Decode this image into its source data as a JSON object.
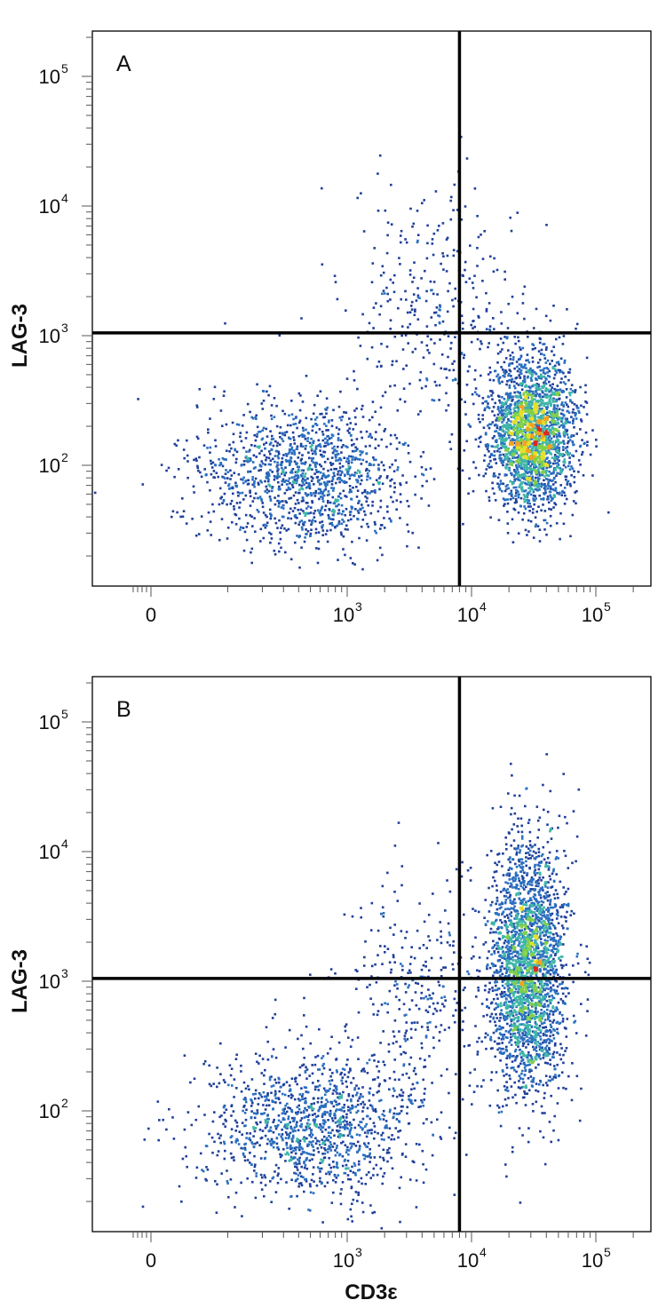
{
  "chart_data": [
    {
      "type": "scatter",
      "panel_label": "A",
      "xlabel": "",
      "ylabel": "LAG-3",
      "x_scale": "biexponential",
      "y_scale": "log",
      "x_tick_labels": [
        {
          "value": 0,
          "base": "0",
          "exp": ""
        },
        {
          "value": 1000,
          "base": "10",
          "exp": "3"
        },
        {
          "value": 10000,
          "base": "10",
          "exp": "4"
        },
        {
          "value": 100000,
          "base": "10",
          "exp": "5"
        }
      ],
      "y_tick_labels": [
        {
          "value": 100,
          "base": "10",
          "exp": "2"
        },
        {
          "value": 1000,
          "base": "10",
          "exp": "3"
        },
        {
          "value": 10000,
          "base": "10",
          "exp": "4"
        },
        {
          "value": 100000,
          "base": "10",
          "exp": "5"
        }
      ],
      "xlim": [
        -400,
        250000
      ],
      "ylim": [
        12,
        250000
      ],
      "gates": {
        "x": 8000,
        "y": 1050
      },
      "populations": [
        {
          "x_center": 450,
          "y_center": 85,
          "x_spread": 0.42,
          "y_spread": 0.28,
          "weight": 0.32
        },
        {
          "x_center": 30000,
          "y_center": 180,
          "x_spread": 0.17,
          "y_spread": 0.28,
          "weight": 0.6
        },
        {
          "x_center": 5000,
          "y_center": 1800,
          "x_spread": 0.35,
          "y_spread": 0.45,
          "weight": 0.08
        }
      ],
      "grid": false,
      "legend": "none"
    },
    {
      "type": "scatter",
      "panel_label": "B",
      "xlabel": "CD3ε",
      "ylabel": "LAG-3",
      "x_scale": "biexponential",
      "y_scale": "log",
      "x_tick_labels": [
        {
          "value": 0,
          "base": "0",
          "exp": ""
        },
        {
          "value": 1000,
          "base": "10",
          "exp": "3"
        },
        {
          "value": 10000,
          "base": "10",
          "exp": "4"
        },
        {
          "value": 100000,
          "base": "10",
          "exp": "5"
        }
      ],
      "y_tick_labels": [
        {
          "value": 100,
          "base": "10",
          "exp": "2"
        },
        {
          "value": 1000,
          "base": "10",
          "exp": "3"
        },
        {
          "value": 10000,
          "base": "10",
          "exp": "4"
        },
        {
          "value": 100000,
          "base": "10",
          "exp": "5"
        }
      ],
      "xlim": [
        -400,
        250000
      ],
      "ylim": [
        12,
        250000
      ],
      "gates": {
        "x": 8000,
        "y": 1050
      },
      "populations": [
        {
          "x_center": 500,
          "y_center": 75,
          "x_spread": 0.42,
          "y_spread": 0.28,
          "weight": 0.3
        },
        {
          "x_center": 28000,
          "y_center": 1300,
          "x_spread": 0.15,
          "y_spread": 0.48,
          "weight": 0.62
        },
        {
          "x_center": 4000,
          "y_center": 900,
          "x_spread": 0.35,
          "y_spread": 0.45,
          "weight": 0.08
        }
      ],
      "grid": false,
      "legend": "none"
    }
  ],
  "colors": {
    "density_scale": [
      "#1f3f9a",
      "#2a6fbf",
      "#3fb6a8",
      "#7fcf4a",
      "#e6df2a",
      "#f2a31f",
      "#e0261f"
    ],
    "gate_line": "#000000",
    "frame": "#000000"
  }
}
